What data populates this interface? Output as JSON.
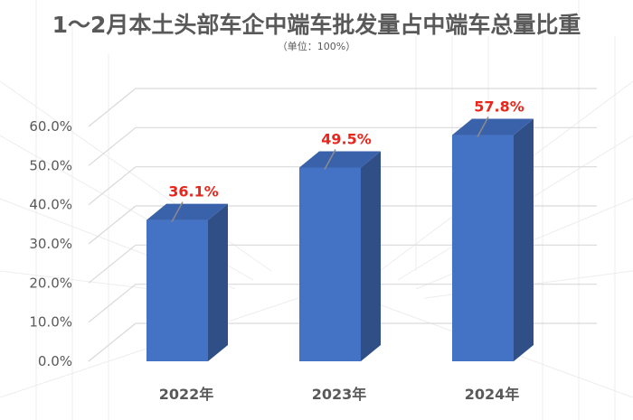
{
  "chart_data": {
    "type": "bar",
    "title": "1～2月本土头部车企中端车批发量占中端车总量比重",
    "subtitle": "（单位：100%）",
    "categories": [
      "2022年",
      "2023年",
      "2024年"
    ],
    "series": [
      {
        "values": [
          36.1,
          49.5,
          57.8
        ]
      }
    ],
    "data_labels": [
      "36.1%",
      "49.5%",
      "57.8%"
    ],
    "yticks": [
      "0.0%",
      "10.0%",
      "20.0%",
      "30.0%",
      "40.0%",
      "50.0%",
      "60.0%"
    ],
    "ylim": [
      0,
      60
    ],
    "grid": true,
    "legend": "none",
    "colors": {
      "bar_front": "#4472C4",
      "bar_side": "#2F4F86",
      "bar_top": "#3A62AB",
      "data_label": "#E8261C",
      "axis_text": "#595959",
      "grid": "#D9D9D9",
      "title": "#595959"
    }
  }
}
